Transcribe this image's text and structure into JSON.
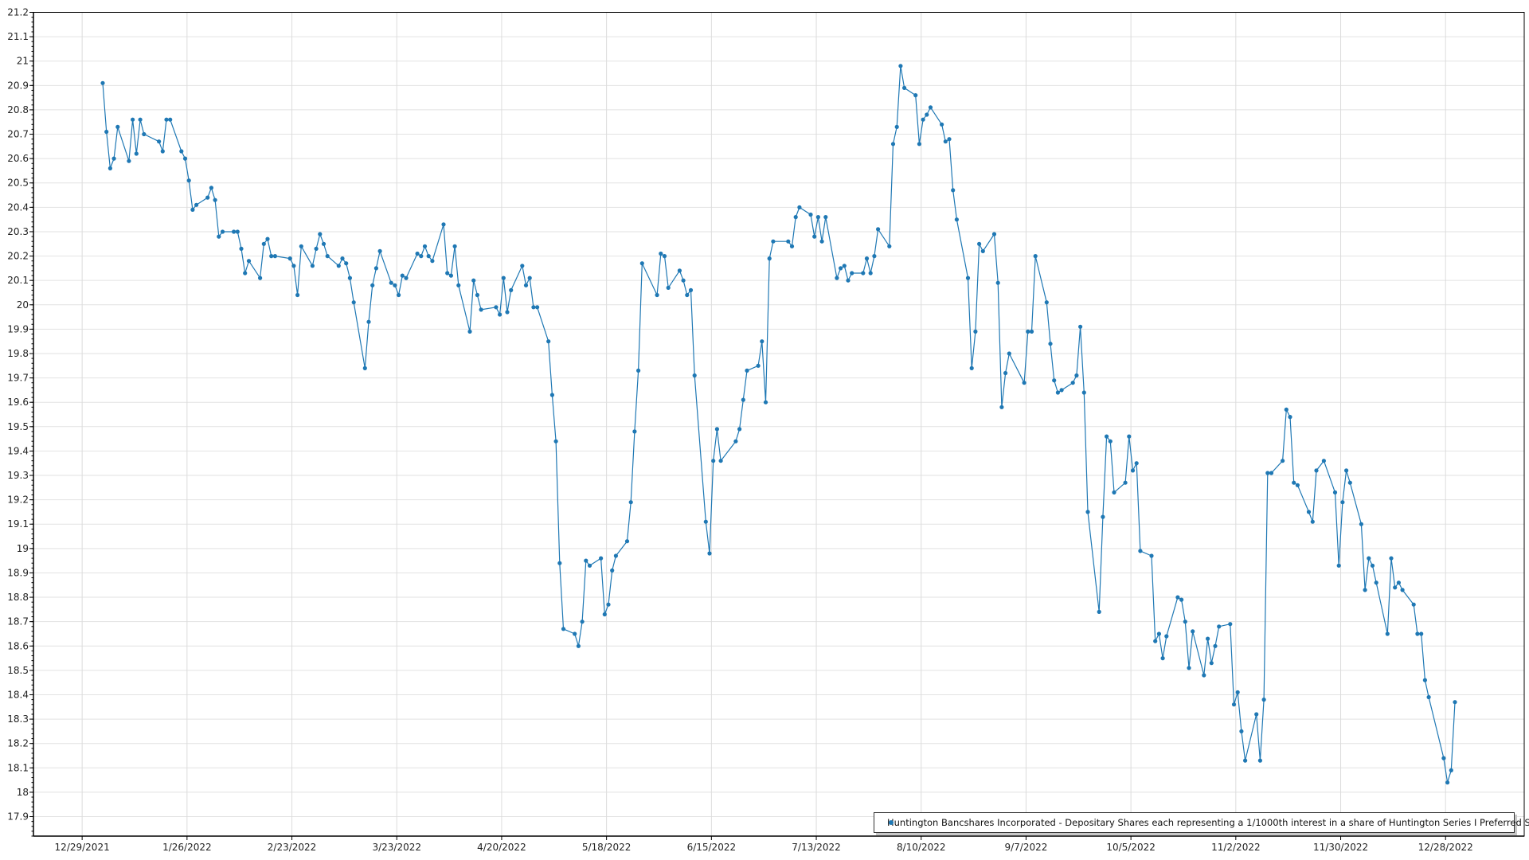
{
  "chart_data": {
    "type": "line",
    "title": "",
    "xlabel": "",
    "ylabel": "",
    "xlim": [
      "2021-12-16",
      "2023-01-18"
    ],
    "ylim": [
      17.82,
      21.2
    ],
    "grid": true,
    "legend_position": "bottom-right",
    "line_color": "#1f78b4",
    "x_tick_labels": [
      "12/29/2021",
      "1/26/2022",
      "2/23/2022",
      "3/23/2022",
      "4/20/2022",
      "5/18/2022",
      "6/15/2022",
      "7/13/2022",
      "8/10/2022",
      "9/7/2022",
      "10/5/2022",
      "11/2/2022",
      "11/30/2022",
      "12/28/2022"
    ],
    "y_tick_labels": [
      "17.9",
      "18",
      "18.1",
      "18.2",
      "18.3",
      "18.4",
      "18.5",
      "18.6",
      "18.7",
      "18.8",
      "18.9",
      "19",
      "19.1",
      "19.2",
      "19.3",
      "19.4",
      "19.5",
      "19.6",
      "19.7",
      "19.8",
      "19.9",
      "20",
      "20.1",
      "20.2",
      "20.3",
      "20.4",
      "20.5",
      "20.6",
      "20.7",
      "20.8",
      "20.9",
      "21",
      "21.1",
      "21.2"
    ],
    "series": [
      {
        "name": "Huntington Bancshares Incorporated - Depositary Shares each representing a 1/1000th interest in a share of Huntington Series I Preferred Stock",
        "points": [
          [
            "2022-01-03",
            20.91
          ],
          [
            "2022-01-04",
            20.71
          ],
          [
            "2022-01-05",
            20.56
          ],
          [
            "2022-01-06",
            20.6
          ],
          [
            "2022-01-07",
            20.73
          ],
          [
            "2022-01-10",
            20.59
          ],
          [
            "2022-01-11",
            20.76
          ],
          [
            "2022-01-12",
            20.62
          ],
          [
            "2022-01-13",
            20.76
          ],
          [
            "2022-01-14",
            20.7
          ],
          [
            "2022-01-18",
            20.67
          ],
          [
            "2022-01-19",
            20.63
          ],
          [
            "2022-01-20",
            20.76
          ],
          [
            "2022-01-21",
            20.76
          ],
          [
            "2022-01-24",
            20.63
          ],
          [
            "2022-01-25",
            20.6
          ],
          [
            "2022-01-26",
            20.51
          ],
          [
            "2022-01-27",
            20.39
          ],
          [
            "2022-01-28",
            20.41
          ],
          [
            "2022-01-31",
            20.44
          ],
          [
            "2022-02-01",
            20.48
          ],
          [
            "2022-02-02",
            20.43
          ],
          [
            "2022-02-03",
            20.28
          ],
          [
            "2022-02-04",
            20.3
          ],
          [
            "2022-02-07",
            20.3
          ],
          [
            "2022-02-08",
            20.3
          ],
          [
            "2022-02-09",
            20.23
          ],
          [
            "2022-02-10",
            20.13
          ],
          [
            "2022-02-11",
            20.18
          ],
          [
            "2022-02-14",
            20.11
          ],
          [
            "2022-02-15",
            20.25
          ],
          [
            "2022-02-16",
            20.27
          ],
          [
            "2022-02-17",
            20.2
          ],
          [
            "2022-02-18",
            20.2
          ],
          [
            "2022-02-22",
            20.19
          ],
          [
            "2022-02-23",
            20.16
          ],
          [
            "2022-02-24",
            20.04
          ],
          [
            "2022-02-25",
            20.24
          ],
          [
            "2022-02-28",
            20.16
          ],
          [
            "2022-03-01",
            20.23
          ],
          [
            "2022-03-02",
            20.29
          ],
          [
            "2022-03-03",
            20.25
          ],
          [
            "2022-03-04",
            20.2
          ],
          [
            "2022-03-07",
            20.16
          ],
          [
            "2022-03-08",
            20.19
          ],
          [
            "2022-03-09",
            20.17
          ],
          [
            "2022-03-10",
            20.11
          ],
          [
            "2022-03-11",
            20.01
          ],
          [
            "2022-03-14",
            19.74
          ],
          [
            "2022-03-15",
            19.93
          ],
          [
            "2022-03-16",
            20.08
          ],
          [
            "2022-03-17",
            20.15
          ],
          [
            "2022-03-18",
            20.22
          ],
          [
            "2022-03-21",
            20.09
          ],
          [
            "2022-03-22",
            20.08
          ],
          [
            "2022-03-23",
            20.04
          ],
          [
            "2022-03-24",
            20.12
          ],
          [
            "2022-03-25",
            20.11
          ],
          [
            "2022-03-28",
            20.21
          ],
          [
            "2022-03-29",
            20.2
          ],
          [
            "2022-03-30",
            20.24
          ],
          [
            "2022-03-31",
            20.2
          ],
          [
            "2022-04-01",
            20.18
          ],
          [
            "2022-04-04",
            20.33
          ],
          [
            "2022-04-05",
            20.13
          ],
          [
            "2022-04-06",
            20.12
          ],
          [
            "2022-04-07",
            20.24
          ],
          [
            "2022-04-08",
            20.08
          ],
          [
            "2022-04-11",
            19.89
          ],
          [
            "2022-04-12",
            20.1
          ],
          [
            "2022-04-13",
            20.04
          ],
          [
            "2022-04-14",
            19.98
          ],
          [
            "2022-04-18",
            19.99
          ],
          [
            "2022-04-19",
            19.96
          ],
          [
            "2022-04-20",
            20.11
          ],
          [
            "2022-04-21",
            19.97
          ],
          [
            "2022-04-22",
            20.06
          ],
          [
            "2022-04-25",
            20.16
          ],
          [
            "2022-04-26",
            20.08
          ],
          [
            "2022-04-27",
            20.11
          ],
          [
            "2022-04-28",
            19.99
          ],
          [
            "2022-04-29",
            19.99
          ],
          [
            "2022-05-02",
            19.85
          ],
          [
            "2022-05-03",
            19.63
          ],
          [
            "2022-05-04",
            19.44
          ],
          [
            "2022-05-05",
            18.94
          ],
          [
            "2022-05-06",
            18.67
          ],
          [
            "2022-05-09",
            18.65
          ],
          [
            "2022-05-10",
            18.6
          ],
          [
            "2022-05-11",
            18.7
          ],
          [
            "2022-05-12",
            18.95
          ],
          [
            "2022-05-13",
            18.93
          ],
          [
            "2022-05-16",
            18.96
          ],
          [
            "2022-05-17",
            18.73
          ],
          [
            "2022-05-18",
            18.77
          ],
          [
            "2022-05-19",
            18.91
          ],
          [
            "2022-05-20",
            18.97
          ],
          [
            "2022-05-23",
            19.03
          ],
          [
            "2022-05-24",
            19.19
          ],
          [
            "2022-05-25",
            19.48
          ],
          [
            "2022-05-26",
            19.73
          ],
          [
            "2022-05-27",
            20.17
          ],
          [
            "2022-05-31",
            20.04
          ],
          [
            "2022-06-01",
            20.21
          ],
          [
            "2022-06-02",
            20.2
          ],
          [
            "2022-06-03",
            20.07
          ],
          [
            "2022-06-06",
            20.14
          ],
          [
            "2022-06-07",
            20.1
          ],
          [
            "2022-06-08",
            20.04
          ],
          [
            "2022-06-09",
            20.06
          ],
          [
            "2022-06-10",
            19.71
          ],
          [
            "2022-06-13",
            19.11
          ],
          [
            "2022-06-14",
            18.98
          ],
          [
            "2022-06-15",
            19.36
          ],
          [
            "2022-06-16",
            19.49
          ],
          [
            "2022-06-17",
            19.36
          ],
          [
            "2022-06-21",
            19.44
          ],
          [
            "2022-06-22",
            19.49
          ],
          [
            "2022-06-23",
            19.61
          ],
          [
            "2022-06-24",
            19.73
          ],
          [
            "2022-06-27",
            19.75
          ],
          [
            "2022-06-28",
            19.85
          ],
          [
            "2022-06-29",
            19.6
          ],
          [
            "2022-06-30",
            20.19
          ],
          [
            "2022-07-01",
            20.26
          ],
          [
            "2022-07-05",
            20.26
          ],
          [
            "2022-07-06",
            20.24
          ],
          [
            "2022-07-07",
            20.36
          ],
          [
            "2022-07-08",
            20.4
          ],
          [
            "2022-07-11",
            20.37
          ],
          [
            "2022-07-12",
            20.28
          ],
          [
            "2022-07-13",
            20.36
          ],
          [
            "2022-07-14",
            20.26
          ],
          [
            "2022-07-15",
            20.36
          ],
          [
            "2022-07-18",
            20.11
          ],
          [
            "2022-07-19",
            20.15
          ],
          [
            "2022-07-20",
            20.16
          ],
          [
            "2022-07-21",
            20.1
          ],
          [
            "2022-07-22",
            20.13
          ],
          [
            "2022-07-25",
            20.13
          ],
          [
            "2022-07-26",
            20.19
          ],
          [
            "2022-07-27",
            20.13
          ],
          [
            "2022-07-28",
            20.2
          ],
          [
            "2022-07-29",
            20.31
          ],
          [
            "2022-08-01",
            20.24
          ],
          [
            "2022-08-02",
            20.66
          ],
          [
            "2022-08-03",
            20.73
          ],
          [
            "2022-08-04",
            20.98
          ],
          [
            "2022-08-05",
            20.89
          ],
          [
            "2022-08-08",
            20.86
          ],
          [
            "2022-08-09",
            20.66
          ],
          [
            "2022-08-10",
            20.76
          ],
          [
            "2022-08-11",
            20.78
          ],
          [
            "2022-08-12",
            20.81
          ],
          [
            "2022-08-15",
            20.74
          ],
          [
            "2022-08-16",
            20.67
          ],
          [
            "2022-08-17",
            20.68
          ],
          [
            "2022-08-18",
            20.47
          ],
          [
            "2022-08-19",
            20.35
          ],
          [
            "2022-08-22",
            20.11
          ],
          [
            "2022-08-23",
            19.74
          ],
          [
            "2022-08-24",
            19.89
          ],
          [
            "2022-08-25",
            20.25
          ],
          [
            "2022-08-26",
            20.22
          ],
          [
            "2022-08-29",
            20.29
          ],
          [
            "2022-08-30",
            20.09
          ],
          [
            "2022-08-31",
            19.58
          ],
          [
            "2022-09-01",
            19.72
          ],
          [
            "2022-09-02",
            19.8
          ],
          [
            "2022-09-06",
            19.68
          ],
          [
            "2022-09-07",
            19.89
          ],
          [
            "2022-09-08",
            19.89
          ],
          [
            "2022-09-09",
            20.2
          ],
          [
            "2022-09-12",
            20.01
          ],
          [
            "2022-09-13",
            19.84
          ],
          [
            "2022-09-14",
            19.69
          ],
          [
            "2022-09-15",
            19.64
          ],
          [
            "2022-09-16",
            19.65
          ],
          [
            "2022-09-19",
            19.68
          ],
          [
            "2022-09-20",
            19.71
          ],
          [
            "2022-09-21",
            19.91
          ],
          [
            "2022-09-22",
            19.64
          ],
          [
            "2022-09-23",
            19.15
          ],
          [
            "2022-09-26",
            18.74
          ],
          [
            "2022-09-27",
            19.13
          ],
          [
            "2022-09-28",
            19.46
          ],
          [
            "2022-09-29",
            19.44
          ],
          [
            "2022-09-30",
            19.23
          ],
          [
            "2022-10-03",
            19.27
          ],
          [
            "2022-10-04",
            19.46
          ],
          [
            "2022-10-05",
            19.32
          ],
          [
            "2022-10-06",
            19.35
          ],
          [
            "2022-10-07",
            18.99
          ],
          [
            "2022-10-10",
            18.97
          ],
          [
            "2022-10-11",
            18.62
          ],
          [
            "2022-10-12",
            18.65
          ],
          [
            "2022-10-13",
            18.55
          ],
          [
            "2022-10-14",
            18.64
          ],
          [
            "2022-10-17",
            18.8
          ],
          [
            "2022-10-18",
            18.79
          ],
          [
            "2022-10-19",
            18.7
          ],
          [
            "2022-10-20",
            18.51
          ],
          [
            "2022-10-21",
            18.66
          ],
          [
            "2022-10-24",
            18.48
          ],
          [
            "2022-10-25",
            18.63
          ],
          [
            "2022-10-26",
            18.53
          ],
          [
            "2022-10-27",
            18.6
          ],
          [
            "2022-10-28",
            18.68
          ],
          [
            "2022-10-31",
            18.69
          ],
          [
            "2022-11-01",
            18.36
          ],
          [
            "2022-11-02",
            18.41
          ],
          [
            "2022-11-03",
            18.25
          ],
          [
            "2022-11-04",
            18.13
          ],
          [
            "2022-11-07",
            18.32
          ],
          [
            "2022-11-08",
            18.13
          ],
          [
            "2022-11-09",
            18.38
          ],
          [
            "2022-11-10",
            19.31
          ],
          [
            "2022-11-11",
            19.31
          ],
          [
            "2022-11-14",
            19.36
          ],
          [
            "2022-11-15",
            19.57
          ],
          [
            "2022-11-16",
            19.54
          ],
          [
            "2022-11-17",
            19.27
          ],
          [
            "2022-11-18",
            19.26
          ],
          [
            "2022-11-21",
            19.15
          ],
          [
            "2022-11-22",
            19.11
          ],
          [
            "2022-11-23",
            19.32
          ],
          [
            "2022-11-25",
            19.36
          ],
          [
            "2022-11-28",
            19.23
          ],
          [
            "2022-11-29",
            18.93
          ],
          [
            "2022-11-30",
            19.19
          ],
          [
            "2022-12-01",
            19.32
          ],
          [
            "2022-12-02",
            19.27
          ],
          [
            "2022-12-05",
            19.1
          ],
          [
            "2022-12-06",
            18.83
          ],
          [
            "2022-12-07",
            18.96
          ],
          [
            "2022-12-08",
            18.93
          ],
          [
            "2022-12-09",
            18.86
          ],
          [
            "2022-12-12",
            18.65
          ],
          [
            "2022-12-13",
            18.96
          ],
          [
            "2022-12-14",
            18.84
          ],
          [
            "2022-12-15",
            18.86
          ],
          [
            "2022-12-16",
            18.83
          ],
          [
            "2022-12-19",
            18.77
          ],
          [
            "2022-12-20",
            18.65
          ],
          [
            "2022-12-21",
            18.65
          ],
          [
            "2022-12-22",
            18.46
          ],
          [
            "2022-12-23",
            18.39
          ],
          [
            "2022-12-27",
            18.14
          ],
          [
            "2022-12-28",
            18.04
          ],
          [
            "2022-12-29",
            18.09
          ],
          [
            "2022-12-30",
            18.37
          ]
        ]
      }
    ]
  }
}
